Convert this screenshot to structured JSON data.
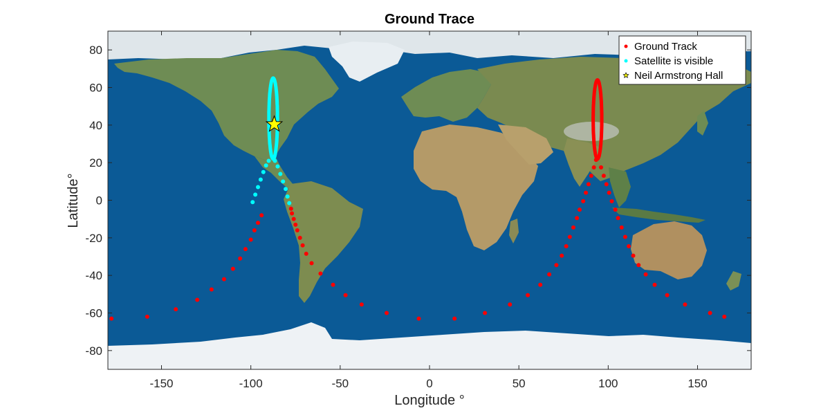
{
  "chart_data": {
    "type": "scatter",
    "title": "Ground Trace",
    "xlabel": "Longitude °",
    "ylabel": "Latitude°",
    "xlim": [
      -180,
      180
    ],
    "ylim": [
      -90,
      90
    ],
    "xticks": [
      -150,
      -100,
      -50,
      0,
      50,
      100,
      150
    ],
    "yticks": [
      -80,
      -60,
      -40,
      -20,
      0,
      20,
      40,
      60,
      80
    ],
    "grid": false,
    "background": "world map (blue oceans, green/brown continents, white polar ice)",
    "legend_position": "top-right",
    "series": [
      {
        "name": "Ground Track",
        "marker": "dot",
        "color": "#ff0000",
        "points": [
          [
            -178,
            -63
          ],
          [
            -158,
            -62
          ],
          [
            -142,
            -58
          ],
          [
            -130,
            -53
          ],
          [
            -122,
            -47.5
          ],
          [
            -115,
            -42
          ],
          [
            -110,
            -36.5
          ],
          [
            -106,
            -31
          ],
          [
            -103,
            -26
          ],
          [
            -100,
            -21
          ],
          [
            -98,
            -16
          ],
          [
            -96,
            -12
          ],
          [
            -94,
            -8
          ],
          [
            -77.5,
            -4.5
          ],
          [
            -77,
            -7
          ],
          [
            -76,
            -10
          ],
          [
            -75,
            -13
          ],
          [
            -74,
            -16
          ],
          [
            -72.5,
            -20
          ],
          [
            -71,
            -24
          ],
          [
            -69,
            -28.5
          ],
          [
            -66,
            -33.5
          ],
          [
            -61,
            -39
          ],
          [
            -54,
            -45
          ],
          [
            -47,
            -50.5
          ],
          [
            -38,
            -55.5
          ],
          [
            -24,
            -60
          ],
          [
            -6,
            -63
          ],
          [
            14,
            -63
          ],
          [
            31,
            -60
          ],
          [
            45,
            -55.5
          ],
          [
            55,
            -50.5
          ],
          [
            62,
            -45
          ],
          [
            67,
            -39.5
          ],
          [
            71,
            -34.5
          ],
          [
            74,
            -29.5
          ],
          [
            76.5,
            -24.5
          ],
          [
            78.5,
            -19.5
          ],
          [
            80.5,
            -14.5
          ],
          [
            82.5,
            -9.5
          ],
          [
            84,
            -5
          ],
          [
            86,
            -0.5
          ],
          [
            87.5,
            4
          ],
          [
            89,
            8.5
          ],
          [
            90.5,
            13
          ],
          [
            92,
            17.5
          ],
          [
            93.2,
            21.5
          ],
          [
            96,
            17.5
          ],
          [
            97.5,
            13
          ],
          [
            99,
            8.5
          ],
          [
            100.5,
            4
          ],
          [
            102,
            -0.5
          ],
          [
            104,
            -5
          ],
          [
            105.5,
            -9.5
          ],
          [
            107.5,
            -14.5
          ],
          [
            109.5,
            -19.5
          ],
          [
            111.5,
            -24.5
          ],
          [
            114,
            -29.5
          ],
          [
            117,
            -34.5
          ],
          [
            121,
            -39.5
          ],
          [
            126,
            -45
          ],
          [
            133,
            -50.5
          ],
          [
            143,
            -55.5
          ],
          [
            157,
            -60
          ],
          [
            165,
            -62
          ]
        ],
        "loops": [
          {
            "center_lon": 94,
            "lat_min": 22,
            "lat_max": 64,
            "half_width_deg": 2.4
          }
        ]
      },
      {
        "name": "Satellite is visible",
        "marker": "dot",
        "color": "#00ffff",
        "points": [
          [
            -99,
            -1
          ],
          [
            -97.5,
            3
          ],
          [
            -96,
            7
          ],
          [
            -94.5,
            11
          ],
          [
            -93,
            15
          ],
          [
            -91.5,
            18.5
          ],
          [
            -90,
            21
          ],
          [
            -78.5,
            -1.5
          ],
          [
            -79.5,
            2
          ],
          [
            -80.5,
            6
          ],
          [
            -82,
            10
          ],
          [
            -83.5,
            14
          ],
          [
            -85,
            18
          ],
          [
            -86.5,
            21
          ]
        ],
        "loops": [
          {
            "center_lon": -87.5,
            "lat_min": 22,
            "lat_max": 65,
            "half_width_deg": 2.4
          }
        ]
      },
      {
        "name": "Neil Armstrong Hall",
        "marker": "star",
        "color": "#ffff00",
        "points": [
          [
            -86.9,
            40.4
          ]
        ]
      }
    ]
  }
}
